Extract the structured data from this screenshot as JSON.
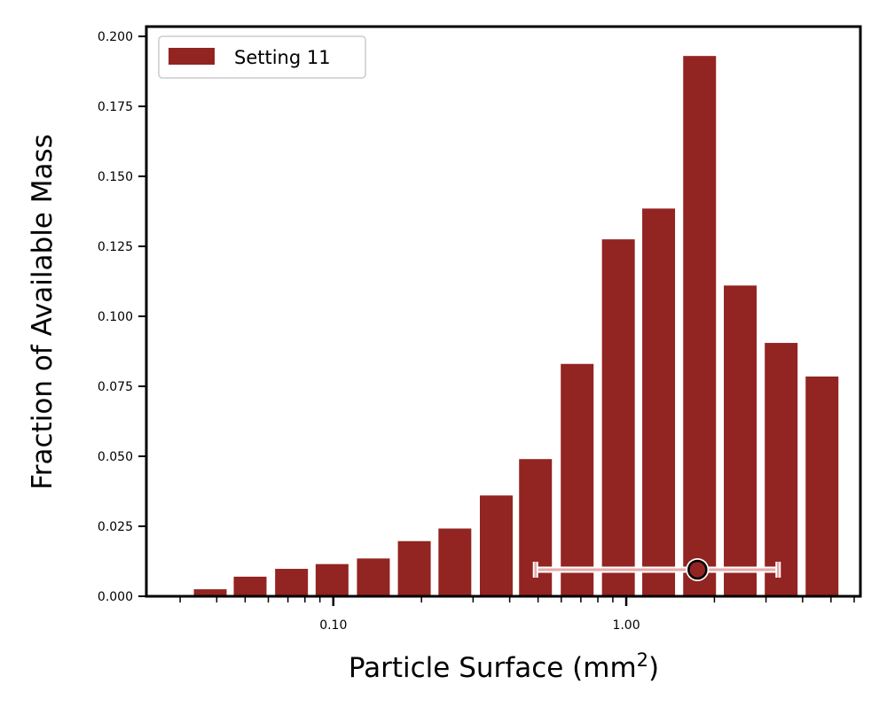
{
  "chart_data": {
    "type": "bar",
    "x_scale": "log",
    "xlabel": "Particle Surface (mm",
    "xlabel_superscript": "2",
    "xlabel_suffix": ")",
    "ylabel": "Fraction of Available Mass",
    "xlim": [
      0.023,
      6.3
    ],
    "ylim": [
      0,
      0.2035
    ],
    "x_tick_labels": [
      "0.10",
      "1.00"
    ],
    "y_tick_labels": [
      "0.000",
      "0.025",
      "0.050",
      "0.075",
      "0.100",
      "0.125",
      "0.150",
      "0.175",
      "0.200"
    ],
    "legend_position": "top-left",
    "series": [
      {
        "name": "Setting 11",
        "color": "#922421",
        "x": [
          0.038,
          0.052,
          0.072,
          0.099,
          0.137,
          0.189,
          0.26,
          0.36,
          0.49,
          0.68,
          0.94,
          1.29,
          1.78,
          2.45,
          3.38,
          4.66
        ],
        "values": [
          0.0025,
          0.007,
          0.0098,
          0.0115,
          0.0135,
          0.0197,
          0.0242,
          0.036,
          0.049,
          0.083,
          0.1275,
          0.1385,
          0.193,
          0.111,
          0.0905,
          0.0785
        ]
      }
    ],
    "summary_marker": {
      "x": 1.75,
      "y": 0.0095,
      "x_low": 0.49,
      "x_high": 3.3,
      "color": "#922421"
    }
  }
}
